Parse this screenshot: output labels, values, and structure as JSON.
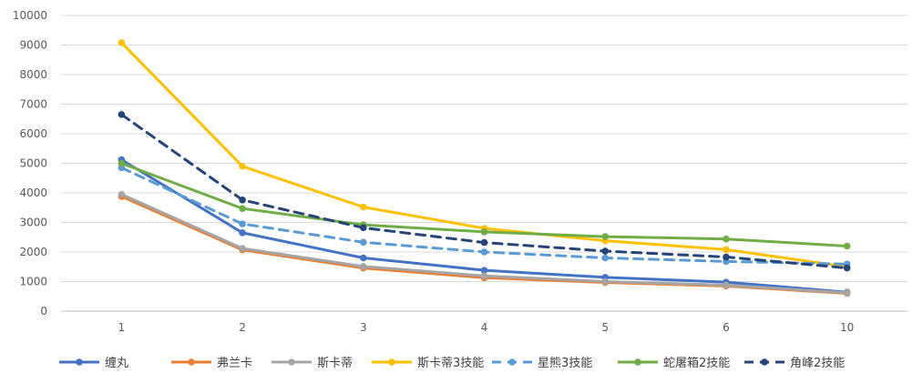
{
  "chart_data": {
    "type": "line",
    "title": "",
    "xlabel": "",
    "ylabel": "",
    "categories": [
      "1",
      "2",
      "3",
      "4",
      "5",
      "6",
      "10"
    ],
    "ylim": [
      0,
      10000
    ],
    "yticks": [
      0,
      1000,
      2000,
      3000,
      4000,
      5000,
      6000,
      7000,
      8000,
      9000,
      10000
    ],
    "grid": "horizontal",
    "legend_position": "bottom",
    "series": [
      {
        "name": "缠丸",
        "color": "#4472C4",
        "dash": "solid",
        "values": [
          5120,
          2650,
          1800,
          1380,
          1140,
          980,
          640
        ]
      },
      {
        "name": "弗兰卡",
        "color": "#ED7D31",
        "dash": "solid",
        "values": [
          3880,
          2070,
          1460,
          1130,
          970,
          850,
          600
        ]
      },
      {
        "name": "斯卡蒂",
        "color": "#A5A5A5",
        "dash": "solid",
        "values": [
          3950,
          2120,
          1510,
          1190,
          1000,
          880,
          620
        ]
      },
      {
        "name": "斯卡蒂3技能",
        "color": "#FFC000",
        "dash": "solid",
        "values": [
          9080,
          4900,
          3520,
          2800,
          2380,
          2080,
          1500
        ]
      },
      {
        "name": "星熊3技能",
        "color": "#5B9BD5",
        "dash": "dashed",
        "values": [
          4850,
          2950,
          2330,
          2000,
          1800,
          1680,
          1590
        ]
      },
      {
        "name": "蛇屠箱2技能",
        "color": "#70AD47",
        "dash": "solid",
        "values": [
          5000,
          3470,
          2920,
          2680,
          2520,
          2440,
          2200
        ]
      },
      {
        "name": "角峰2技能",
        "color": "#264478",
        "dash": "dashed",
        "values": [
          6650,
          3760,
          2820,
          2320,
          2030,
          1830,
          1460
        ]
      }
    ]
  }
}
